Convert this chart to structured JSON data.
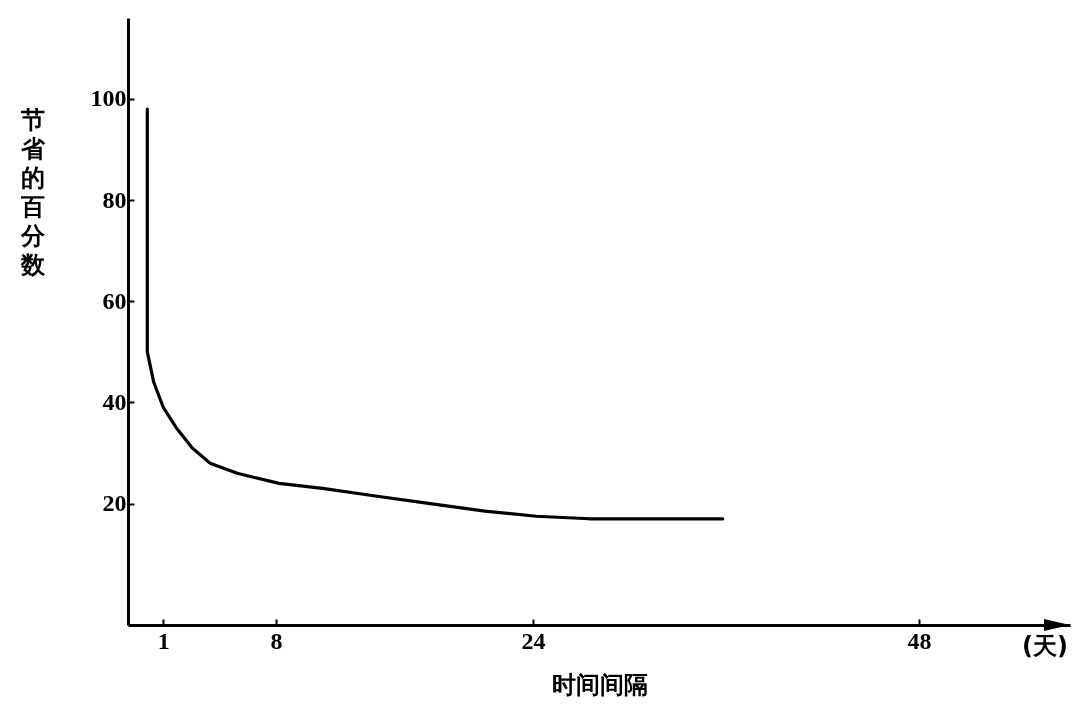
{
  "chart_data": {
    "type": "line",
    "xlabel": "时间间隔",
    "ylabel": "节省的百分数",
    "annotations": [
      "(天)"
    ],
    "x": [
      0,
      0,
      0,
      0.4,
      1,
      1.8,
      2.8,
      3.9,
      5.6,
      8.2,
      10.9,
      14.2,
      17.6,
      21,
      24.2,
      27.5,
      30.9,
      33.5,
      35.8
    ],
    "series": [
      {
        "color": "#000000",
        "values": [
          98,
          75,
          50,
          44,
          39,
          35,
          31,
          28,
          26,
          24,
          23,
          21.5,
          20,
          18.5,
          17.5,
          17,
          17,
          17,
          17
        ]
      }
    ],
    "xlim": [
      -1.2,
      57.4
    ],
    "xticks": [
      1,
      8,
      24,
      48
    ],
    "ylim": [
      -4,
      116
    ],
    "yticks": [
      20,
      40,
      60,
      80,
      100
    ],
    "grid": false,
    "line_style": "solid",
    "marker": "none"
  }
}
